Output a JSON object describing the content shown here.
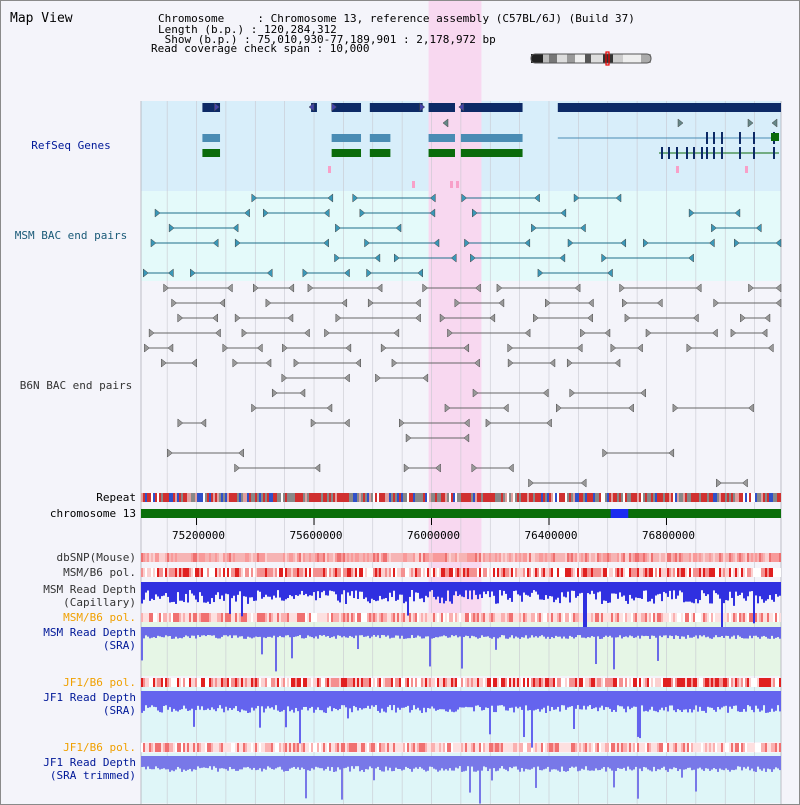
{
  "map_title": "Map View",
  "info": {
    "line1": "Chromosome     : Chromosome 13, reference assembly (C57BL/6J) (Build 37)",
    "line2": "Length (b.p.) : 120,284,312",
    "line3": " Show (b.p.) : 75,010,930-77,189,901 : 2,178,972 bp",
    "line4": "Read coverage check span : 10,000"
  },
  "tracks": {
    "refseq": "RefSeq Genes",
    "msm_bac": "MSM BAC end pairs",
    "b6n_bac": "B6N BAC end pairs",
    "repeat": "Repeat",
    "chromosome": "chromosome 13",
    "dbsnp": "dbSNP(Mouse)",
    "msm_b6_pol_a": "MSM/B6 pol.",
    "msm_depth_cap_1": "MSM Read Depth",
    "msm_depth_cap_2": "(Capillary)",
    "msm_b6_pol_b": "MSM/B6 pol.",
    "msm_depth_sra_1": "MSM Read Depth",
    "msm_depth_sra_2": "(SRA)",
    "jf1_b6_pol_a": "JF1/B6 pol.",
    "jf1_depth_sra_1": "JF1 Read Depth",
    "jf1_depth_sra_2": "(SRA)",
    "jf1_b6_pol_b": "JF1/B6 pol.",
    "jf1_depth_trim_1": "JF1 Read Depth",
    "jf1_depth_trim_2": "(SRA trimmed)"
  },
  "axis": {
    "start": 75010930,
    "end": 77189901,
    "ticks": [
      {
        "pos": 75200000,
        "label": "75200000"
      },
      {
        "pos": 75600000,
        "label": "75600000"
      },
      {
        "pos": 76000000,
        "label": "76000000"
      },
      {
        "pos": 76400000,
        "label": "76400000"
      },
      {
        "pos": 76800000,
        "label": "76800000"
      }
    ]
  },
  "highlight_region": {
    "start": 75990000,
    "end": 76170000
  },
  "colors": {
    "refseq_bg": "#d8eefa",
    "msm_bac_bg": "#e4fafa",
    "highlight": "#f8d8f0",
    "gene_dark": "#0d2a66",
    "gene_mid": "#4a8cb4",
    "gene_green": "#0b6b0b",
    "chromosome_bar": "#0a6e0a",
    "chromosome_mark": "#1a2cf0",
    "msm_label": "#1a5a78",
    "track_label_blue": "#001898",
    "track_label_orange": "#f0a000",
    "depth_cap": "#3030e0",
    "depth_sra": "#6a6ae8"
  },
  "chart_data": {
    "type": "genome_browser",
    "chromosome": "Chromosome 13",
    "region": {
      "start": 75010930,
      "end": 77189901,
      "length": 2178972
    },
    "coverage_check_span": 10000,
    "highlight": {
      "start": 75990000,
      "end": 76170000
    },
    "refseq_genes": [
      {
        "start": 75220000,
        "end": 75280000
      },
      {
        "start": 75590000,
        "end": 75610000
      },
      {
        "start": 75660000,
        "end": 75760000
      },
      {
        "start": 75790000,
        "end": 75970000
      },
      {
        "start": 75990000,
        "end": 76080000
      },
      {
        "start": 76100000,
        "end": 76310000
      },
      {
        "start": 76430000,
        "end": 77189901
      }
    ],
    "chromosome_marker": {
      "start": 76610000,
      "end": 76670000
    }
  }
}
